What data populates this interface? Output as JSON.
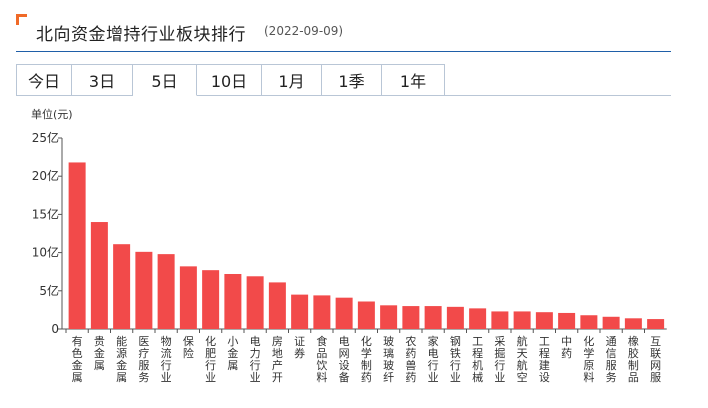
{
  "header": {
    "title": "北向资金增持行业板块排行",
    "date": "(2022-09-09)"
  },
  "tabs": [
    {
      "label": "今日",
      "active": false
    },
    {
      "label": "3日",
      "active": false
    },
    {
      "label": "5日",
      "active": true
    },
    {
      "label": "10日",
      "active": false
    },
    {
      "label": "1月",
      "active": false
    },
    {
      "label": "1季",
      "active": false
    },
    {
      "label": "1年",
      "active": false
    }
  ],
  "colors": {
    "bar": "#f24a4a",
    "accent": "#f06a28",
    "rule": "#1f5fa8"
  },
  "chart_data": {
    "type": "bar",
    "unit_label": "单位(元)",
    "ylim": [
      0,
      25
    ],
    "yticks": [
      {
        "value": 0,
        "label": "0"
      },
      {
        "value": 5,
        "label": "5亿"
      },
      {
        "value": 10,
        "label": "10亿"
      },
      {
        "value": 15,
        "label": "15亿"
      },
      {
        "value": 20,
        "label": "20亿"
      },
      {
        "value": 25,
        "label": "25亿"
      }
    ],
    "categories": [
      "有色金属",
      "贵金属",
      "能源金属",
      "医疗服务",
      "物流行业",
      "保险",
      "化肥行业",
      "小金属",
      "电力行业",
      "房地产开",
      "证券",
      "食品饮料",
      "电网设备",
      "化学制药",
      "玻璃玻纤",
      "农药兽药",
      "家电行业",
      "钢铁行业",
      "工程机械",
      "采掘行业",
      "航天航空",
      "工程建设",
      "中药",
      "化学原料",
      "通信服务",
      "橡胶制品",
      "互联网服"
    ],
    "values": [
      21.8,
      14.0,
      11.1,
      10.1,
      9.8,
      8.2,
      7.7,
      7.2,
      6.9,
      6.1,
      4.5,
      4.4,
      4.1,
      3.6,
      3.1,
      3.0,
      3.0,
      2.9,
      2.7,
      2.3,
      2.3,
      2.2,
      2.1,
      1.8,
      1.6,
      1.4,
      1.3
    ],
    "grid": false,
    "legend": "none"
  }
}
